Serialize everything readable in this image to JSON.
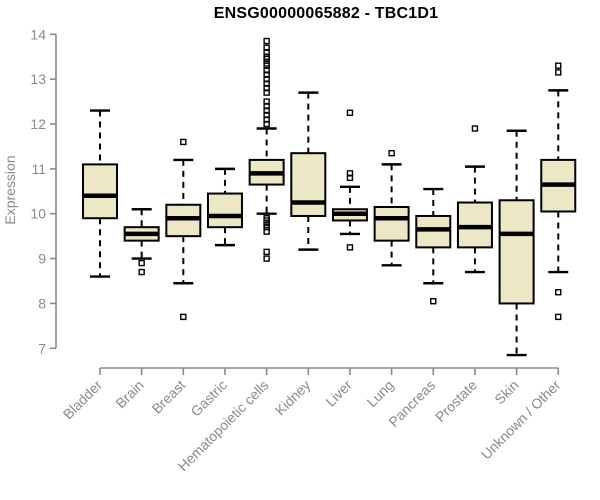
{
  "title": "ENSG00000065882 - TBC1D1",
  "colors": {
    "background": "#FFFFFF",
    "box_fill": "#ECE7C5",
    "box_border": "#000000",
    "median": "#000000",
    "whisker": "#000000",
    "outlier": "#000000",
    "axis": "#8A8A8A",
    "tick_label": "#8A8A8A",
    "title_color": "#000000"
  },
  "chart_data": {
    "type": "boxplot",
    "title": "ENSG00000065882 - TBC1D1",
    "xlabel": "",
    "ylabel": "Expression",
    "ylim": [
      7,
      14
    ],
    "yticks": [
      7,
      8,
      9,
      10,
      11,
      12,
      13,
      14
    ],
    "grid": false,
    "legend": "none",
    "categories": [
      "Bladder",
      "Brain",
      "Breast",
      "Gastric",
      "Hematopoietic cells",
      "Kidney",
      "Liver",
      "Lung",
      "Pancreas",
      "Prostate",
      "Skin",
      "Unknown / Other"
    ],
    "boxes": [
      {
        "label": "Bladder",
        "whislo": 8.6,
        "q1": 9.9,
        "med": 10.4,
        "q3": 11.1,
        "whishi": 12.3,
        "outliers": []
      },
      {
        "label": "Brain",
        "whislo": 9.0,
        "q1": 9.4,
        "med": 9.55,
        "q3": 9.7,
        "whishi": 10.1,
        "outliers": [
          8.9,
          8.7
        ]
      },
      {
        "label": "Breast",
        "whislo": 8.45,
        "q1": 9.5,
        "med": 9.9,
        "q3": 10.2,
        "whishi": 11.2,
        "outliers": [
          11.6,
          7.7
        ]
      },
      {
        "label": "Gastric",
        "whislo": 9.3,
        "q1": 9.7,
        "med": 9.95,
        "q3": 10.45,
        "whishi": 11.0,
        "outliers": []
      },
      {
        "label": "Hematopoietic cells",
        "whislo": 10.0,
        "q1": 10.65,
        "med": 10.9,
        "q3": 11.2,
        "whishi": 11.9,
        "outliers": [
          13.85,
          13.7,
          13.6,
          13.5,
          13.45,
          13.35,
          13.3,
          13.2,
          13.1,
          13.0,
          12.9,
          12.8,
          12.7,
          12.5,
          12.4,
          12.3,
          12.2,
          12.1,
          12.0,
          9.9,
          9.85,
          9.8,
          9.75,
          9.7,
          9.6,
          9.15,
          9.0
        ]
      },
      {
        "label": "Kidney",
        "whislo": 9.2,
        "q1": 9.95,
        "med": 10.25,
        "q3": 11.35,
        "whishi": 12.7,
        "outliers": []
      },
      {
        "label": "Liver",
        "whislo": 9.55,
        "q1": 9.85,
        "med": 10.0,
        "q3": 10.1,
        "whishi": 10.6,
        "outliers": [
          12.25,
          10.9,
          10.8,
          9.25
        ]
      },
      {
        "label": "Lung",
        "whislo": 8.85,
        "q1": 9.4,
        "med": 9.9,
        "q3": 10.15,
        "whishi": 11.1,
        "outliers": [
          11.35
        ]
      },
      {
        "label": "Pancreas",
        "whislo": 8.45,
        "q1": 9.25,
        "med": 9.65,
        "q3": 9.95,
        "whishi": 10.55,
        "outliers": [
          8.05
        ]
      },
      {
        "label": "Prostate",
        "whislo": 8.7,
        "q1": 9.25,
        "med": 9.7,
        "q3": 10.25,
        "whishi": 11.05,
        "outliers": [
          11.9
        ]
      },
      {
        "label": "Skin",
        "whislo": 6.85,
        "q1": 8.0,
        "med": 9.55,
        "q3": 10.3,
        "whishi": 11.85,
        "outliers": []
      },
      {
        "label": "Unknown / Other",
        "whislo": 8.7,
        "q1": 10.05,
        "med": 10.65,
        "q3": 11.2,
        "whishi": 12.75,
        "outliers": [
          13.3,
          13.15,
          8.25,
          7.7
        ]
      }
    ]
  }
}
